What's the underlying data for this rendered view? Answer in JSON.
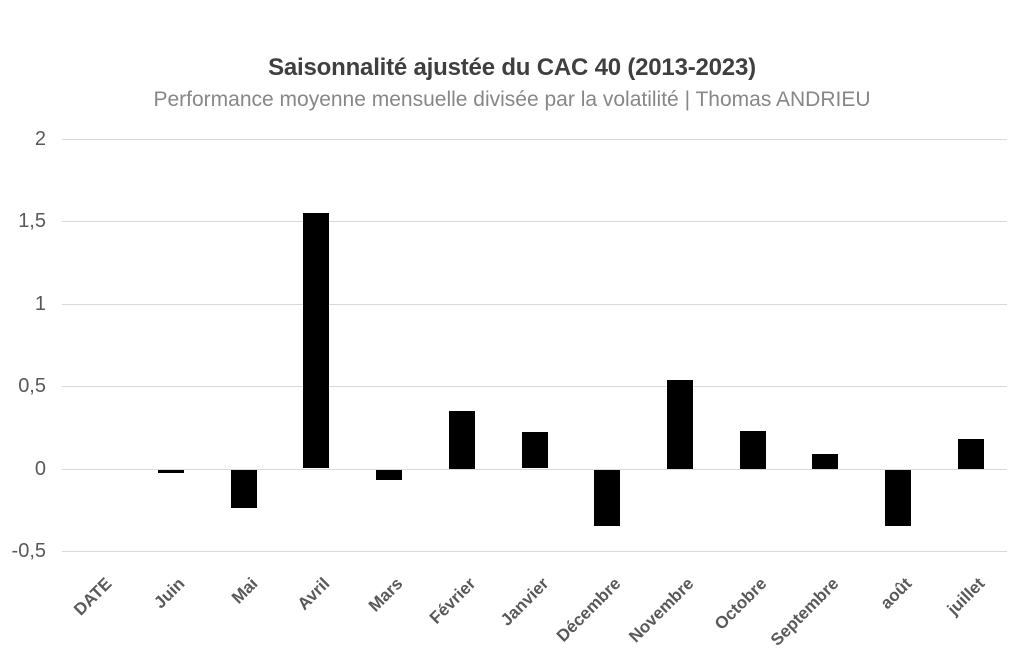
{
  "chart_data": {
    "type": "bar",
    "title": "Saisonnalité ajustée du CAC 40 (2013-2023)",
    "subtitle": "Performance moyenne mensuelle divisée par la volatilité | Thomas ANDRIEU",
    "categories": [
      "DATE",
      "Juin",
      "Mai",
      "Avril",
      "Mars",
      "Février",
      "Janvier",
      "Décembre",
      "Novembre",
      "Octobre",
      "Septembre",
      "août",
      "juillet"
    ],
    "values": [
      0,
      -0.02,
      -0.23,
      1.55,
      -0.06,
      0.35,
      0.22,
      -0.34,
      0.54,
      0.23,
      0.09,
      -0.34,
      0.18
    ],
    "xlabel": "",
    "ylabel": "",
    "ylim": [
      -0.5,
      2
    ],
    "ytick_step": 0.5,
    "ytick_labels": [
      "2",
      "1,5",
      "1",
      "0,5",
      "0",
      "-0,5"
    ],
    "decimal_separator": ",",
    "grid": true,
    "legend": "none",
    "colors": {
      "bar": "#000000",
      "gridline": "#d9d9d9",
      "title": "#3f3f3f",
      "subtitle": "#878787",
      "tick_label": "#595959",
      "background": "#ffffff"
    }
  }
}
